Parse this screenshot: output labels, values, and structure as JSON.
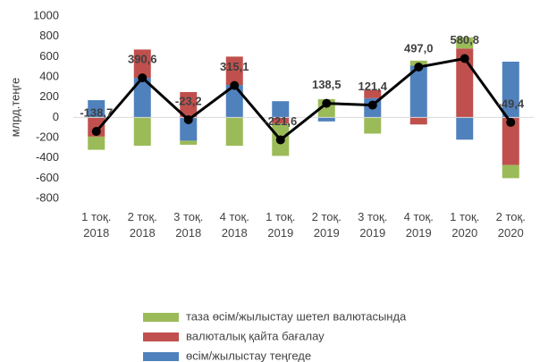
{
  "chart_data": {
    "type": "stacked_bar_line",
    "y_label": "млрд.теңге",
    "categories": [
      "1 тоқ.\n2018",
      "2 тоқ.\n2018",
      "3 тоқ.\n2018",
      "4 тоқ.\n2018",
      "1 тоқ.\n2019",
      "2 тоқ.\n2019",
      "3 тоқ.\n2019",
      "4 тоқ.\n2019",
      "1 тоқ.\n2020",
      "2 тоқ.\n2020"
    ],
    "series": [
      {
        "name": "таза өсім/жылыстау шетел валютасында",
        "color": "#9bbb59",
        "values": [
          -130,
          -280,
          -40,
          -280,
          -320,
          180,
          -160,
          50,
          110,
          -130
        ]
      },
      {
        "name": "валюталық қайта бағалау",
        "color": "#c0504d",
        "values": [
          -190,
          280,
          250,
          280,
          -60,
          0,
          80,
          -70,
          680,
          -470
        ]
      },
      {
        "name": "өсім/жылыстау теңгеде",
        "color": "#4f81bd",
        "values": [
          170,
          390,
          -230,
          320,
          160,
          -40,
          190,
          510,
          -220,
          550
        ]
      }
    ],
    "line": {
      "color": "#000000",
      "values": [
        -138.7,
        390.6,
        -23.2,
        315.1,
        -221.6,
        138.5,
        121.4,
        497.0,
        580.8,
        -49.4
      ],
      "value_labels": [
        "-138,7",
        "390,6",
        "-23,2",
        "315,1",
        "-221,6",
        "138,5",
        "121,4",
        "497,0",
        "580,8",
        "-49,4"
      ]
    },
    "ylim": [
      -800,
      1000
    ],
    "yticks": [
      -800,
      -600,
      -400,
      -200,
      0,
      200,
      400,
      600,
      800,
      1000
    ],
    "legend": "bottom"
  }
}
